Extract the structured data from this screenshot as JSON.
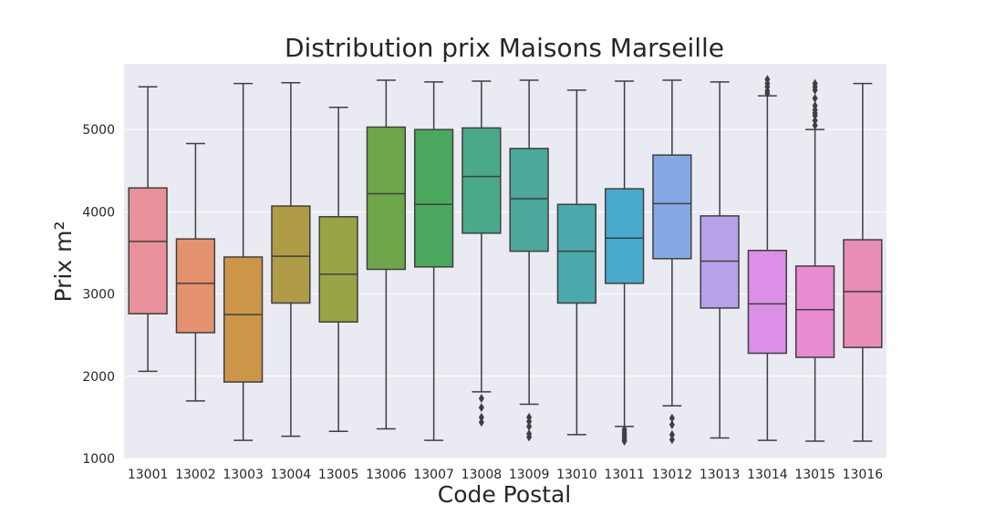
{
  "chart_data": {
    "type": "box",
    "title": "Distribution prix Maisons Marseille",
    "xlabel": "Code Postal",
    "ylabel": "Prix m²",
    "ylim": [
      1000,
      5800
    ],
    "yticks": [
      1000,
      2000,
      3000,
      4000,
      5000
    ],
    "grid": true,
    "background": "#eaeaf2",
    "line_color": "#3f3f3f",
    "categories": [
      "13001",
      "13002",
      "13003",
      "13004",
      "13005",
      "13006",
      "13007",
      "13008",
      "13009",
      "13010",
      "13011",
      "13012",
      "13013",
      "13014",
      "13015",
      "13016"
    ],
    "colors": [
      "#e8919a",
      "#e5936f",
      "#cc9648",
      "#b09c47",
      "#9ba347",
      "#6ea64a",
      "#4aa95e",
      "#4aa88b",
      "#4ca79d",
      "#4ba8ad",
      "#4aaace",
      "#85a7e4",
      "#b6a2e9",
      "#db8fe7",
      "#e98bd3",
      "#e88db5"
    ],
    "boxes": [
      {
        "whisker_low": 2060,
        "q1": 2760,
        "median": 3640,
        "q3": 4290,
        "whisker_high": 5520,
        "outliers": []
      },
      {
        "whisker_low": 1700,
        "q1": 2530,
        "median": 3130,
        "q3": 3670,
        "whisker_high": 4830,
        "outliers": []
      },
      {
        "whisker_low": 1220,
        "q1": 1930,
        "median": 2750,
        "q3": 3450,
        "whisker_high": 5560,
        "outliers": []
      },
      {
        "whisker_low": 1270,
        "q1": 2890,
        "median": 3460,
        "q3": 4070,
        "whisker_high": 5570,
        "outliers": []
      },
      {
        "whisker_low": 1330,
        "q1": 2660,
        "median": 3240,
        "q3": 3940,
        "whisker_high": 5270,
        "outliers": []
      },
      {
        "whisker_low": 1360,
        "q1": 3300,
        "median": 4220,
        "q3": 5030,
        "whisker_high": 5600,
        "outliers": []
      },
      {
        "whisker_low": 1220,
        "q1": 3330,
        "median": 4090,
        "q3": 5000,
        "whisker_high": 5580,
        "outliers": []
      },
      {
        "whisker_low": 1810,
        "q1": 3740,
        "median": 4430,
        "q3": 5020,
        "whisker_high": 5590,
        "outliers": [
          1730,
          1620,
          1500,
          1440
        ]
      },
      {
        "whisker_low": 1660,
        "q1": 3520,
        "median": 4160,
        "q3": 4770,
        "whisker_high": 5600,
        "outliers": [
          1500,
          1450,
          1390,
          1300,
          1260
        ]
      },
      {
        "whisker_low": 1290,
        "q1": 2890,
        "median": 3520,
        "q3": 4090,
        "whisker_high": 5480,
        "outliers": []
      },
      {
        "whisker_low": 1390,
        "q1": 3130,
        "median": 3680,
        "q3": 4280,
        "whisker_high": 5590,
        "outliers": [
          1350,
          1320,
          1290,
          1260,
          1230,
          1210
        ]
      },
      {
        "whisker_low": 1640,
        "q1": 3430,
        "median": 4100,
        "q3": 4690,
        "whisker_high": 5600,
        "outliers": [
          1490,
          1410,
          1290,
          1230
        ]
      },
      {
        "whisker_low": 1250,
        "q1": 2830,
        "median": 3400,
        "q3": 3950,
        "whisker_high": 5580,
        "outliers": []
      },
      {
        "whisker_low": 1220,
        "q1": 2280,
        "median": 2880,
        "q3": 3530,
        "whisker_high": 5410,
        "outliers": [
          5440,
          5470,
          5520,
          5560,
          5610
        ]
      },
      {
        "whisker_low": 1210,
        "q1": 2230,
        "median": 2810,
        "q3": 3340,
        "whisker_high": 5000,
        "outliers": [
          5050,
          5110,
          5170,
          5200,
          5240,
          5290,
          5380,
          5480,
          5520,
          5560
        ]
      },
      {
        "whisker_low": 1210,
        "q1": 2350,
        "median": 3030,
        "q3": 3660,
        "whisker_high": 5560,
        "outliers": []
      }
    ]
  }
}
